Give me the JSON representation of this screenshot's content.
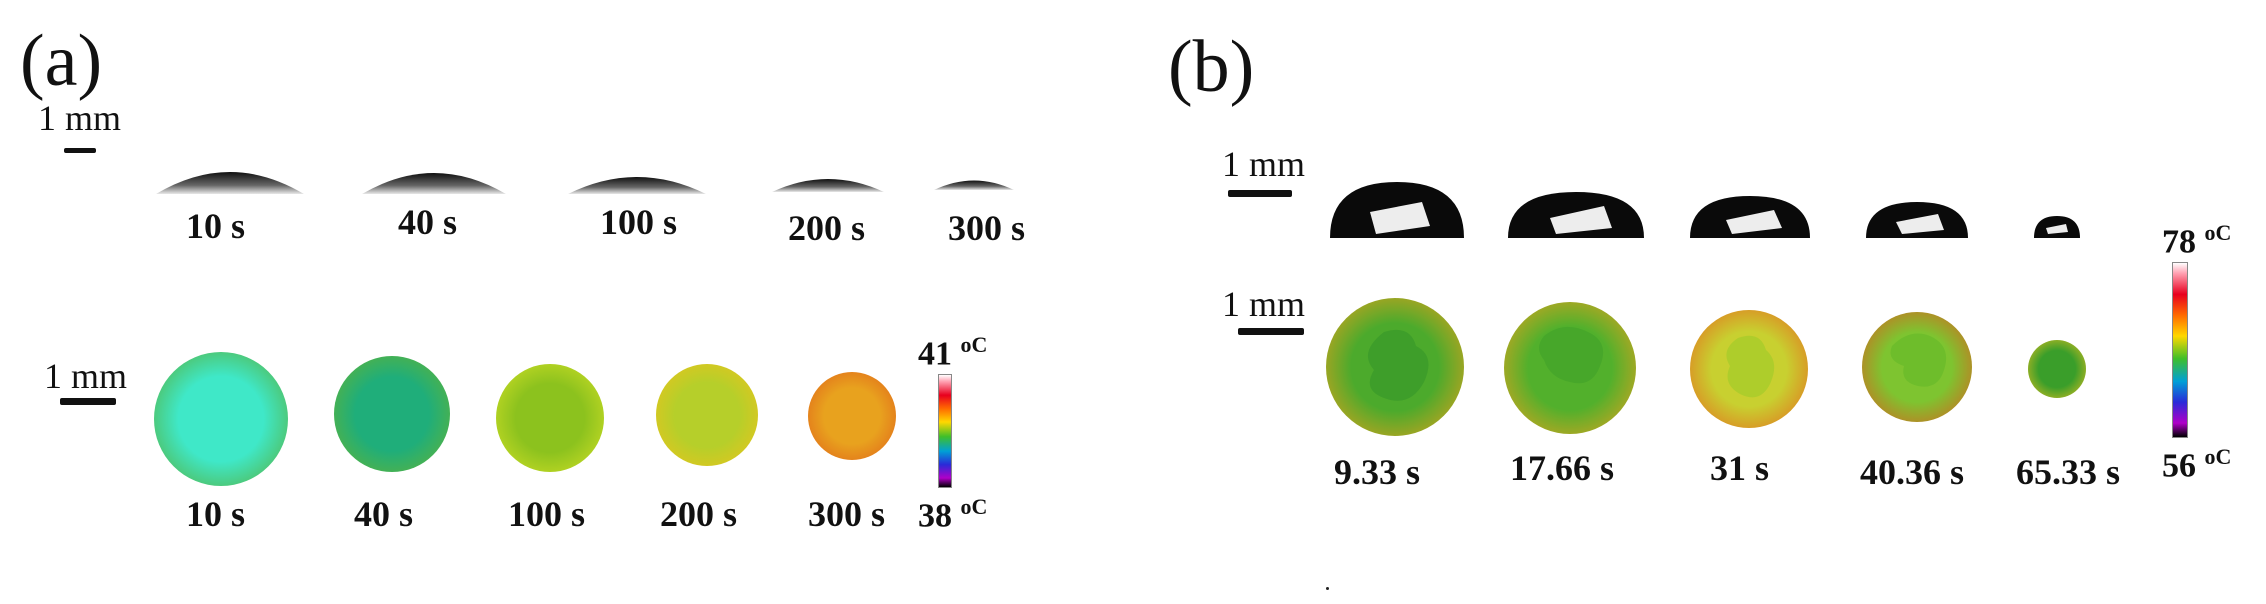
{
  "panels": [
    {
      "label": "(a)",
      "side_scale": "1 mm",
      "side_times": [
        "10 s",
        "40 s",
        "100 s",
        "200 s",
        "300 s"
      ],
      "thermal_scale": "1 mm",
      "thermal_times": [
        "10 s",
        "40 s",
        "100 s",
        "200 s",
        "300 s"
      ],
      "colorbar": {
        "max": "41",
        "min": "38",
        "unit": "oC",
        "max_value": 41,
        "min_value": 38
      },
      "thermal_colors": [
        {
          "center": "#3fe8c8",
          "edge": "#5aa82a"
        },
        {
          "center": "#1fae7a",
          "edge": "#6cb42c"
        },
        {
          "center": "#8cc21e",
          "edge": "#d8e226"
        },
        {
          "center": "#b6cf2a",
          "edge": "#f0c21a"
        },
        {
          "center": "#e8a21e",
          "edge": "#e0601a"
        }
      ]
    },
    {
      "label": "(b)",
      "side_scale": "1 mm",
      "thermal_scale": "1 mm",
      "thermal_times": [
        "9.33 s",
        "17.66 s",
        "31 s",
        "40.36 s",
        "65.33 s"
      ],
      "colorbar": {
        "max": "78",
        "min": "56",
        "unit": "oC",
        "max_value": 78,
        "min_value": 56
      },
      "thermal_colors": [
        {
          "center": "#4caa2c",
          "edge": "#f0a01a"
        },
        {
          "center": "#52b02c",
          "edge": "#f2a01c"
        },
        {
          "center": "#c8d030",
          "edge": "#e8641c"
        },
        {
          "center": "#7ec430",
          "edge": "#e2581c"
        },
        {
          "center": "#3a9e2a",
          "edge": "#e8c020"
        }
      ]
    }
  ]
}
